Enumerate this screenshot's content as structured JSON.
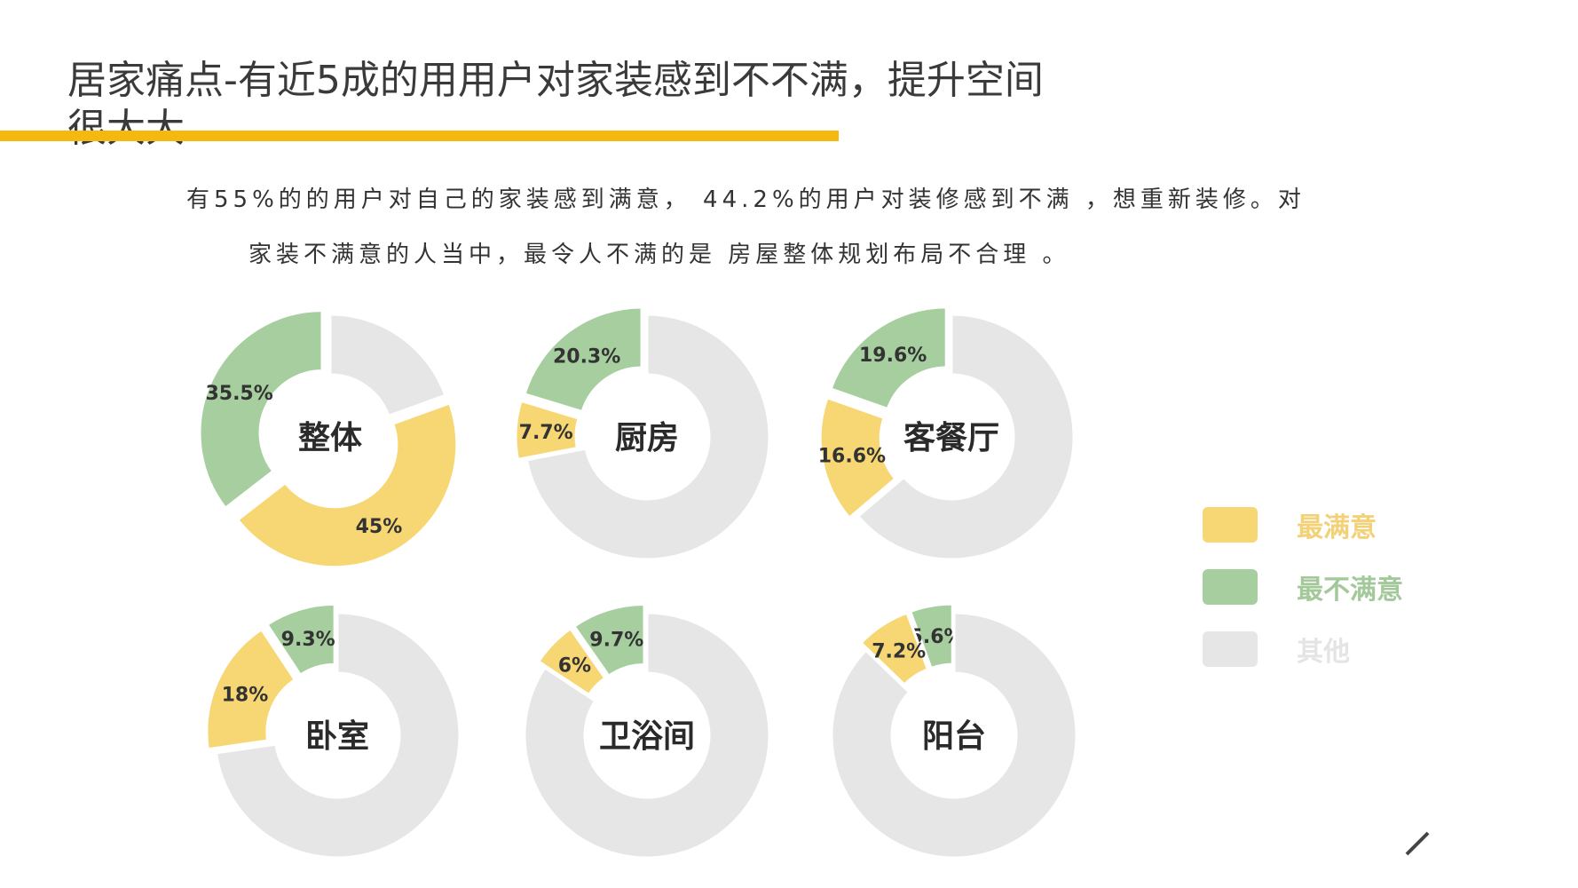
{
  "page": {
    "title": "居家痛点-有近5成的用用户对家装感到不不满，提升空间很大大",
    "paragraph_line1": "有55%的的用户对自己的家装感到满意， 44.2%的用户对装修感到不满 ，想重新装修。对",
    "paragraph_line2": "家装不满意的人当中，最令人不满的是 房屋整体规划布局不合理 。"
  },
  "colors": {
    "satisfied": "#f7d774",
    "dissatisfied": "#a6ce9e",
    "other": "#e6e6e6",
    "accent_bar": "#f5b80e",
    "label_text": "#333333",
    "legend_satisfied_text": "#f3d179",
    "legend_dissatisfied_text": "#a3c99b",
    "legend_other_text": "#e4e4e4"
  },
  "legend": {
    "items": [
      {
        "key": "satisfied",
        "label": "最满意"
      },
      {
        "key": "dissatisfied",
        "label": "最不满意"
      },
      {
        "key": "other",
        "label": "其他"
      }
    ]
  },
  "chart_data": [
    {
      "type": "pie",
      "title": "整体",
      "slices": [
        {
          "key": "satisfied",
          "value": 45,
          "label": "45%"
        },
        {
          "key": "dissatisfied",
          "value": 35.5,
          "label": "35.5%"
        },
        {
          "key": "other",
          "value": 19.5,
          "label": ""
        }
      ]
    },
    {
      "type": "pie",
      "title": "厨房",
      "slices": [
        {
          "key": "satisfied",
          "value": 7.7,
          "label": "7.7%"
        },
        {
          "key": "dissatisfied",
          "value": 20.3,
          "label": "20.3%"
        },
        {
          "key": "other",
          "value": 72,
          "label": ""
        }
      ]
    },
    {
      "type": "pie",
      "title": "客餐厅",
      "slices": [
        {
          "key": "satisfied",
          "value": 16.6,
          "label": "16.6%"
        },
        {
          "key": "dissatisfied",
          "value": 19.6,
          "label": "19.6%"
        },
        {
          "key": "other",
          "value": 63.8,
          "label": ""
        }
      ]
    },
    {
      "type": "pie",
      "title": "卧室",
      "slices": [
        {
          "key": "satisfied",
          "value": 18,
          "label": "18%"
        },
        {
          "key": "dissatisfied",
          "value": 9.3,
          "label": "9.3%"
        },
        {
          "key": "other",
          "value": 72.7,
          "label": ""
        }
      ]
    },
    {
      "type": "pie",
      "title": "卫浴间",
      "slices": [
        {
          "key": "satisfied",
          "value": 6,
          "label": "6%"
        },
        {
          "key": "dissatisfied",
          "value": 9.7,
          "label": "9.7%"
        },
        {
          "key": "other",
          "value": 84.3,
          "label": ""
        }
      ]
    },
    {
      "type": "pie",
      "title": "阳台",
      "slices": [
        {
          "key": "satisfied",
          "value": 7.2,
          "label": "7.2%"
        },
        {
          "key": "dissatisfied",
          "value": 5.6,
          "label": "5.6%"
        },
        {
          "key": "other",
          "value": 87.2,
          "label": ""
        }
      ]
    }
  ]
}
